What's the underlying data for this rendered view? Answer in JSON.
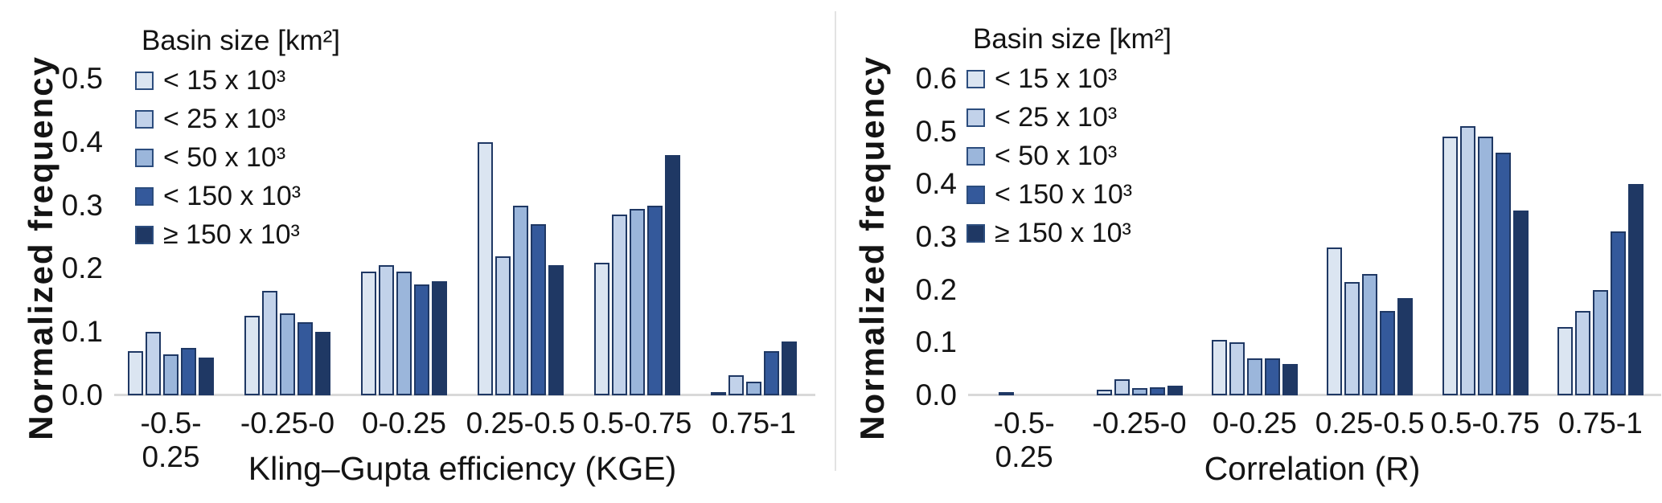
{
  "figure": {
    "background": "#ffffff",
    "divider_color": "#e3e3e3",
    "axis_line_color": "#d9d9d9",
    "text_color": "#141414",
    "bar_border_color": "#1f3864"
  },
  "chart_data": [
    {
      "type": "bar",
      "panel": "left",
      "title": "",
      "xlabel": "Kling–Gupta efficiency (KGE)",
      "ylabel": "Normalized frequency",
      "legend_title": "Basin size [km²]",
      "legend_position": "top-left",
      "grid": false,
      "ylim": [
        0.0,
        0.5
      ],
      "yticks": [
        "0.0",
        "0.1",
        "0.2",
        "0.3",
        "0.4",
        "0.5"
      ],
      "categories": [
        "-0.5-0.25",
        "-0.25-0",
        "0-0.25",
        "0.25-0.5",
        "0.5-0.75",
        "0.75-1"
      ],
      "series": [
        {
          "name": "< 15 x 10³",
          "color": "#dbe5f1",
          "values": [
            0.07,
            0.125,
            0.195,
            0.4,
            0.21,
            0.005
          ]
        },
        {
          "name": "< 25 x 10³",
          "color": "#c2d2ea",
          "values": [
            0.1,
            0.165,
            0.205,
            0.22,
            0.285,
            0.032
          ]
        },
        {
          "name": "< 50 x 10³",
          "color": "#9bb6db",
          "values": [
            0.065,
            0.13,
            0.195,
            0.3,
            0.295,
            0.022
          ]
        },
        {
          "name": "< 150 x 10³",
          "color": "#34599b",
          "values": [
            0.075,
            0.115,
            0.175,
            0.27,
            0.3,
            0.07
          ]
        },
        {
          "name": "≥ 150 x 10³",
          "color": "#1f3864",
          "values": [
            0.06,
            0.1,
            0.18,
            0.205,
            0.38,
            0.085
          ]
        }
      ]
    },
    {
      "type": "bar",
      "panel": "right",
      "title": "",
      "xlabel": "Correlation (R)",
      "ylabel": "Normalized frequency",
      "legend_title": "Basin size [km²]",
      "legend_position": "top-left",
      "grid": false,
      "ylim": [
        0.0,
        0.6
      ],
      "yticks": [
        "0.0",
        "0.1",
        "0.2",
        "0.3",
        "0.4",
        "0.5",
        "0.6"
      ],
      "categories": [
        "-0.5-0.25",
        "-0.25-0",
        "0-0.25",
        "0.25-0.5",
        "0.5-0.75",
        "0.75-1"
      ],
      "series": [
        {
          "name": "< 15 x 10³",
          "color": "#dbe5f1",
          "values": [
            0,
            0.01,
            0.105,
            0.28,
            0.49,
            0.13
          ]
        },
        {
          "name": "< 25 x 10³",
          "color": "#c2d2ea",
          "values": [
            0.005,
            0.03,
            0.1,
            0.215,
            0.51,
            0.16
          ]
        },
        {
          "name": "< 50 x 10³",
          "color": "#9bb6db",
          "values": [
            0,
            0.013,
            0.07,
            0.23,
            0.49,
            0.2
          ]
        },
        {
          "name": "< 150 x 10³",
          "color": "#34599b",
          "values": [
            0,
            0.015,
            0.07,
            0.16,
            0.46,
            0.31
          ]
        },
        {
          "name": "≥ 150 x 10³",
          "color": "#1f3864",
          "values": [
            0,
            0.018,
            0.06,
            0.185,
            0.35,
            0.4
          ]
        }
      ]
    }
  ]
}
